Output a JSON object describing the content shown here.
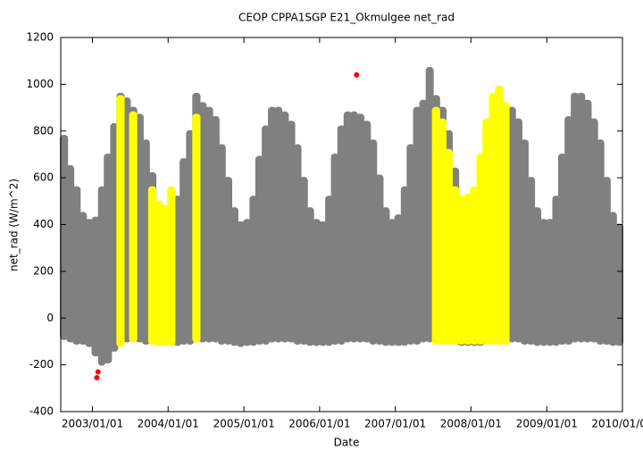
{
  "chart_data": {
    "type": "range",
    "title": "CEOP CPPA1SGP E21_Okmulgee  net_rad",
    "x_label": "Date",
    "y_label": "net_rad (W/m^2)",
    "xlim": [
      "2002-08-01",
      "2010-01-01"
    ],
    "xticks": [
      {
        "value": "2003-01-01",
        "label": "2003/01/01"
      },
      {
        "value": "2004-01-01",
        "label": "2004/01/01"
      },
      {
        "value": "2005-01-01",
        "label": "2005/01/01"
      },
      {
        "value": "2006-01-01",
        "label": "2006/01/01"
      },
      {
        "value": "2007-01-01",
        "label": "2007/01/01"
      },
      {
        "value": "2008-01-01",
        "label": "2008/01/01"
      },
      {
        "value": "2009-01-01",
        "label": "2009/01/01"
      },
      {
        "value": "2010-01-01",
        "label": "2010/01/01"
      }
    ],
    "ylim": [
      -400,
      1200
    ],
    "yticks": [
      -400,
      -200,
      0,
      200,
      400,
      600,
      800,
      1000,
      1200
    ],
    "series": [
      {
        "color": "#808080",
        "x": [
          "2002-08-01",
          "2002-09-01",
          "2002-10-01",
          "2002-11-01",
          "2002-12-01",
          "2003-01-01",
          "2003-02-01",
          "2003-03-01",
          "2003-04-01",
          "2003-05-01",
          "2003-06-01",
          "2003-07-01",
          "2003-08-01",
          "2003-09-01",
          "2003-10-01",
          "2003-11-01",
          "2003-12-01",
          "2004-01-01",
          "2004-02-01",
          "2004-03-01",
          "2004-04-01",
          "2004-05-01",
          "2004-06-01",
          "2004-07-01",
          "2004-08-01",
          "2004-09-01",
          "2004-10-01",
          "2004-11-01",
          "2004-12-01",
          "2005-01-01",
          "2005-02-01",
          "2005-03-01",
          "2005-04-01",
          "2005-05-01",
          "2005-06-01",
          "2005-07-01",
          "2005-08-01",
          "2005-09-01",
          "2005-10-01",
          "2005-11-01",
          "2005-12-01",
          "2006-01-01",
          "2006-02-01",
          "2006-03-01",
          "2006-04-01",
          "2006-05-01",
          "2006-06-01",
          "2006-07-01",
          "2006-08-01",
          "2006-09-01",
          "2006-10-01",
          "2006-11-01",
          "2006-12-01",
          "2007-01-01",
          "2007-02-01",
          "2007-03-01",
          "2007-04-01",
          "2007-05-01",
          "2007-06-01",
          "2007-07-01",
          "2007-08-01",
          "2007-09-01",
          "2007-10-01",
          "2007-11-01",
          "2007-12-01",
          "2008-01-01",
          "2008-02-01",
          "2008-03-01",
          "2008-04-01",
          "2008-05-01",
          "2008-06-01",
          "2008-07-01",
          "2008-08-01",
          "2008-09-01",
          "2008-10-01",
          "2008-11-01",
          "2008-12-01",
          "2009-01-01",
          "2009-02-01",
          "2009-03-01",
          "2009-04-01",
          "2009-05-01",
          "2009-06-01",
          "2009-07-01",
          "2009-08-01",
          "2009-09-01",
          "2009-10-01",
          "2009-11-01",
          "2009-12-01"
        ],
        "high": [
          780,
          650,
          560,
          450,
          420,
          430,
          560,
          700,
          830,
          960,
          940,
          900,
          870,
          760,
          620,
          480,
          420,
          440,
          520,
          680,
          800,
          960,
          920,
          900,
          860,
          740,
          600,
          470,
          410,
          420,
          520,
          690,
          820,
          900,
          900,
          880,
          840,
          740,
          600,
          470,
          420,
          410,
          520,
          700,
          820,
          880,
          880,
          870,
          840,
          760,
          610,
          470,
          420,
          440,
          560,
          740,
          900,
          930,
          1070,
          950,
          900,
          800,
          640,
          480,
          440,
          450,
          560,
          720,
          860,
          990,
          920,
          900,
          850,
          760,
          600,
          470,
          420,
          420,
          520,
          700,
          860,
          960,
          960,
          930,
          850,
          760,
          600,
          450,
          400
        ],
        "low": [
          -90,
          -100,
          -110,
          -110,
          -120,
          -160,
          -200,
          -190,
          -140,
          -110,
          -100,
          -100,
          -100,
          -110,
          -110,
          -115,
          -115,
          -115,
          -115,
          -110,
          -110,
          -100,
          -100,
          -100,
          -100,
          -110,
          -110,
          -115,
          -120,
          -115,
          -115,
          -110,
          -110,
          -100,
          -100,
          -100,
          -100,
          -110,
          -110,
          -115,
          -115,
          -115,
          -115,
          -110,
          -110,
          -100,
          -100,
          -100,
          -100,
          -110,
          -110,
          -115,
          -115,
          -115,
          -115,
          -110,
          -110,
          -100,
          -100,
          -100,
          -100,
          -110,
          -110,
          -115,
          -115,
          -115,
          -115,
          -110,
          -110,
          -100,
          -100,
          -100,
          -100,
          -110,
          -110,
          -115,
          -115,
          -115,
          -115,
          -110,
          -110,
          -100,
          -100,
          -100,
          -100,
          -110,
          -110,
          -115,
          -115
        ]
      },
      {
        "color": "#ffff00",
        "x": [
          "2003-05-01",
          "2003-07-01",
          "2003-10-01",
          "2003-11-01",
          "2003-12-01",
          "2004-01-01",
          "2004-05-01",
          "2007-07-01",
          "2007-08-01",
          "2007-09-01",
          "2007-10-01",
          "2007-11-01",
          "2007-12-01",
          "2008-01-01",
          "2008-02-01",
          "2008-03-01",
          "2008-04-01",
          "2008-05-01",
          "2008-06-01"
        ],
        "high": [
          950,
          880,
          560,
          500,
          480,
          560,
          870,
          900,
          850,
          720,
          560,
          520,
          530,
          560,
          700,
          850,
          960,
          990,
          920
        ],
        "low": [
          -120,
          -100,
          -110,
          -115,
          -115,
          -115,
          -100,
          -110,
          -110,
          -110,
          -110,
          -110,
          -110,
          -110,
          -110,
          -110,
          -110,
          -110,
          -110
        ]
      }
    ],
    "outliers": {
      "color": "#ff0000",
      "x": [
        "2003-01-22",
        "2003-01-28",
        "2006-06-28"
      ],
      "values": [
        -255,
        -230,
        1040
      ]
    }
  }
}
